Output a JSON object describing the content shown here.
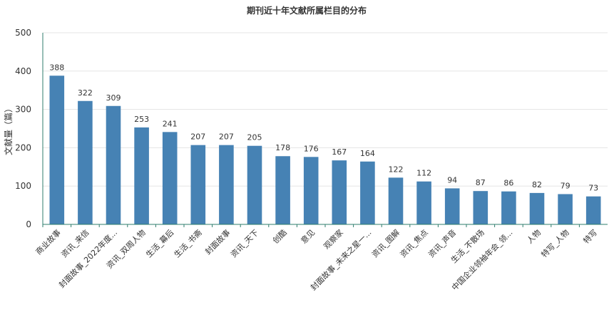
{
  "chart_data": {
    "type": "bar",
    "title": "期刊近十年文献所属栏目的分布",
    "xlabel": "",
    "ylabel": "文献量（篇）",
    "ylim": [
      0,
      500
    ],
    "yticks": [
      0,
      100,
      200,
      300,
      400,
      500
    ],
    "grid": true,
    "bar_color": "#4682b4",
    "categories": [
      "商业故事",
      "资讯_来信",
      "封面故事_2022年度...",
      "资讯_双周人物",
      "生活_幕后",
      "生活_书斋",
      "封面故事",
      "资讯_天下",
      "创酷",
      "意见",
      "观察家",
      "封面故事_未来之星一...",
      "资讯_图解",
      "资讯_焦点",
      "资讯_声音",
      "生活_不散场",
      "中国企业领袖年会_领...",
      "人物",
      "特写_人物",
      "特写"
    ],
    "values": [
      388,
      322,
      309,
      253,
      241,
      207,
      207,
      205,
      178,
      176,
      167,
      164,
      122,
      112,
      94,
      87,
      86,
      82,
      79,
      73
    ]
  }
}
